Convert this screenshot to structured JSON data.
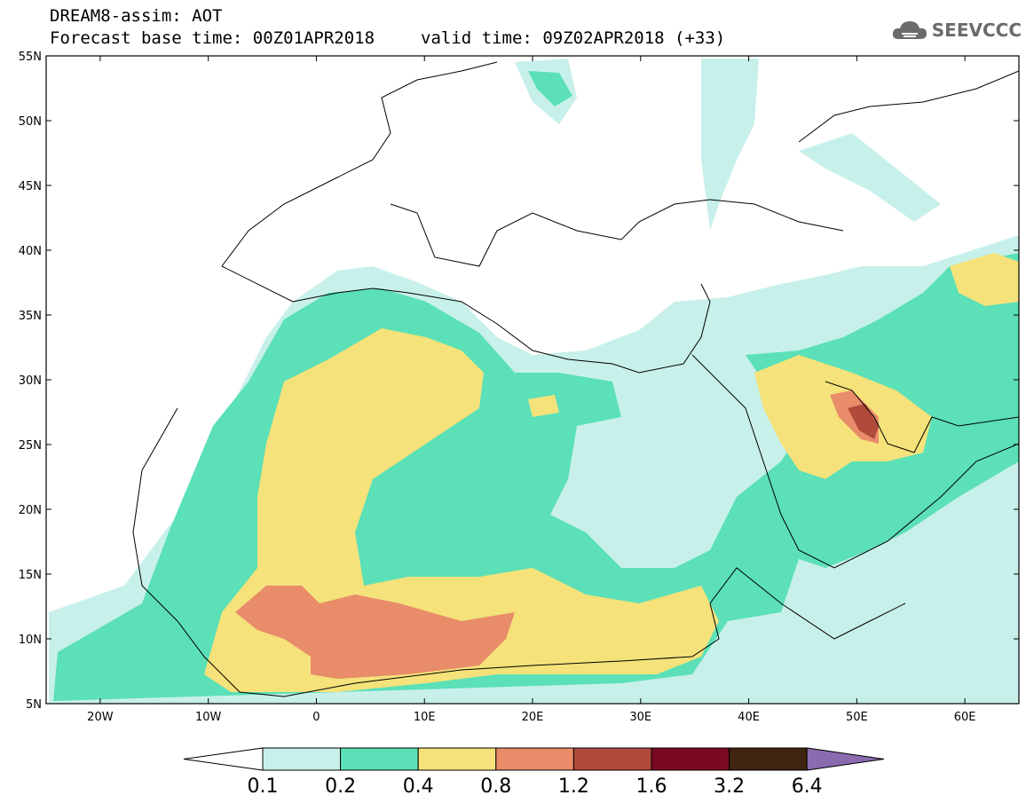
{
  "header": {
    "title_line1": "DREAM8-assim: AOT",
    "title_line2_base": "Forecast base time: 00Z01APR2018",
    "title_line2_valid": "valid time: 09Z02APR2018 (+33)",
    "logo_text": "SEEVCCC",
    "logo_icon": "cloud-icon"
  },
  "map": {
    "variable": "AOT",
    "lon_range": [
      -25,
      65
    ],
    "lat_range": [
      5,
      55
    ],
    "lat_ticks": [
      "55N",
      "50N",
      "45N",
      "40N",
      "35N",
      "30N",
      "25N",
      "20N",
      "15N",
      "10N",
      "5N"
    ],
    "lon_ticks": [
      "20W",
      "10W",
      "0",
      "10E",
      "20E",
      "30E",
      "40E",
      "50E",
      "60E"
    ]
  },
  "colorbar": {
    "levels": [
      "0.1",
      "0.2",
      "0.4",
      "0.8",
      "1.2",
      "1.6",
      "3.2",
      "6.4"
    ],
    "colors": [
      "#ffffff",
      "#c8f0ea",
      "#5be0b8",
      "#f5e27a",
      "#e88c6a",
      "#b04a3a",
      "#7a0a22",
      "#3f2412",
      "#8a6bb0"
    ]
  }
}
